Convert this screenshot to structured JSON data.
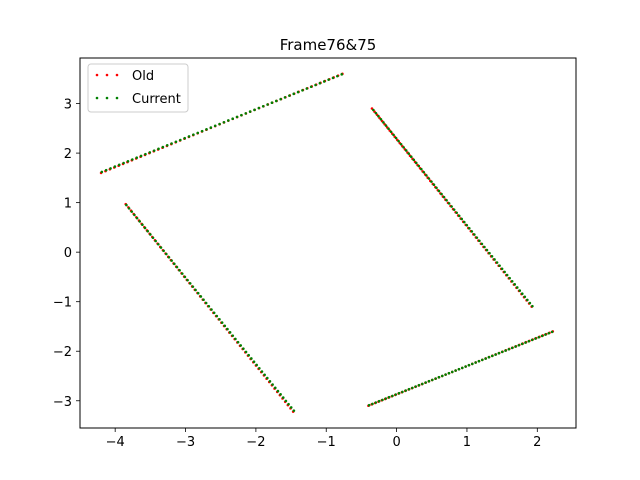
{
  "chart_data": {
    "type": "scatter",
    "title": "Frame76&75",
    "xlabel": "",
    "ylabel": "",
    "xlim": [
      -4.5,
      2.55
    ],
    "ylim": [
      -3.55,
      3.92
    ],
    "xticks": [
      -4,
      -3,
      -2,
      -1,
      0,
      1,
      2
    ],
    "yticks": [
      -3,
      -2,
      -1,
      0,
      1,
      2,
      3
    ],
    "xtick_labels": [
      "−4",
      "−3",
      "−2",
      "−1",
      "0",
      "1",
      "2"
    ],
    "ytick_labels": [
      "−3",
      "−2",
      "−1",
      "0",
      "1",
      "2",
      "3"
    ],
    "grid": false,
    "legend_position": "top-left",
    "series": [
      {
        "name": "Old",
        "color": "#ff0000",
        "segments": [
          {
            "start": [
              -4.2,
              1.6
            ],
            "end": [
              -0.77,
              3.6
            ],
            "points": 56
          },
          {
            "start": [
              -0.35,
              2.9
            ],
            "end": [
              1.92,
              -1.1
            ],
            "points": 64
          },
          {
            "start": [
              -3.85,
              0.97
            ],
            "end": [
              -1.47,
              -3.22
            ],
            "points": 64
          },
          {
            "start": [
              -0.4,
              -3.1
            ],
            "end": [
              2.22,
              -1.6
            ],
            "points": 56
          }
        ]
      },
      {
        "name": "Current",
        "color": "#008000",
        "segments": [
          {
            "start": [
              -4.19,
              1.62
            ],
            "end": [
              -0.78,
              3.59
            ],
            "points": 56
          },
          {
            "start": [
              -0.33,
              2.87
            ],
            "end": [
              1.93,
              -1.09
            ],
            "points": 64
          },
          {
            "start": [
              -3.84,
              0.95
            ],
            "end": [
              -1.46,
              -3.2
            ],
            "points": 64
          },
          {
            "start": [
              -0.39,
              -3.09
            ],
            "end": [
              2.21,
              -1.61
            ],
            "points": 56
          }
        ]
      }
    ]
  }
}
